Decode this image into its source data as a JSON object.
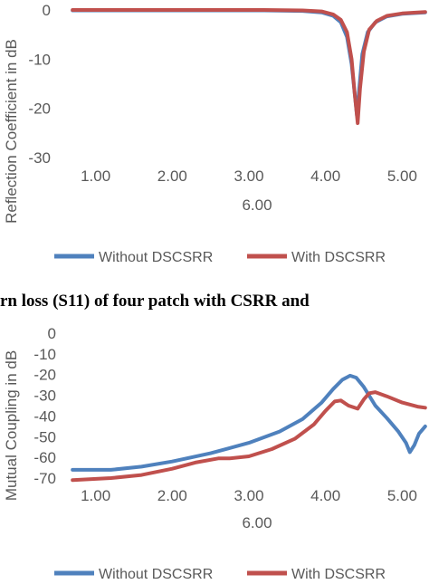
{
  "colors": {
    "without": "#4f81bd",
    "with": "#c0504d",
    "axis": "#d9d9d9",
    "text": "#595959"
  },
  "caption": "rn loss (S11) of four patch with CSRR and",
  "chart_data": [
    {
      "type": "line",
      "ylabel": "Reflection Coefficient in dB",
      "xlabel": "",
      "x_tick_labels": [
        "1.00",
        "2.00",
        "3.00",
        "4.00",
        "5.00"
      ],
      "x_tick_overflow": "6.00",
      "xlim": [
        0.65,
        5.35
      ],
      "ylim": [
        -30,
        0
      ],
      "yticks": [
        "0",
        "-10",
        "-20",
        "-30"
      ],
      "ytick_values": [
        0,
        -10,
        -20,
        -30
      ],
      "grid": false,
      "legend_position": "bottom",
      "series": [
        {
          "name": "Without DSCSRR",
          "color": "#4f81bd",
          "x": [
            0.7,
            1.5,
            2.5,
            3.2,
            3.7,
            3.95,
            4.1,
            4.2,
            4.28,
            4.34,
            4.38,
            4.41,
            4.44,
            4.48,
            4.55,
            4.65,
            4.8,
            5.0,
            5.3
          ],
          "y": [
            -0.1,
            -0.1,
            -0.1,
            -0.1,
            -0.2,
            -0.5,
            -1.2,
            -2.5,
            -5.5,
            -11,
            -17,
            -21.5,
            -16,
            -9,
            -4.5,
            -2.5,
            -1.3,
            -0.8,
            -0.5
          ]
        },
        {
          "name": "With DSCSRR",
          "color": "#c0504d",
          "x": [
            0.7,
            1.5,
            2.5,
            3.2,
            3.7,
            3.95,
            4.1,
            4.2,
            4.28,
            4.34,
            4.38,
            4.42,
            4.45,
            4.5,
            4.57,
            4.67,
            4.8,
            5.0,
            5.3
          ],
          "y": [
            0,
            0,
            0,
            0,
            -0.1,
            -0.3,
            -0.9,
            -2.0,
            -4.5,
            -10,
            -17,
            -23,
            -16,
            -8.5,
            -4,
            -2.2,
            -1.2,
            -0.7,
            -0.4
          ]
        }
      ]
    },
    {
      "type": "line",
      "ylabel": "Mutual Coupling in dB",
      "xlabel": "",
      "x_tick_labels": [
        "1.00",
        "2.00",
        "3.00",
        "4.00",
        "5.00"
      ],
      "x_tick_overflow": "6.00",
      "xlim": [
        0.65,
        5.35
      ],
      "ylim": [
        -70,
        0
      ],
      "yticks": [
        "0",
        "-10",
        "-20",
        "-30",
        "-40",
        "-50",
        "-60",
        "-70"
      ],
      "ytick_values": [
        0,
        -10,
        -20,
        -30,
        -40,
        -50,
        -60,
        -70
      ],
      "grid": false,
      "legend_position": "bottom",
      "series": [
        {
          "name": "Without DSCSRR",
          "color": "#4f81bd",
          "x": [
            0.7,
            1.2,
            1.6,
            2.0,
            2.5,
            3.0,
            3.4,
            3.7,
            3.95,
            4.1,
            4.22,
            4.32,
            4.4,
            4.5,
            4.65,
            4.8,
            4.95,
            5.05,
            5.1,
            5.16,
            5.22,
            5.3
          ],
          "y": [
            -66,
            -66,
            -64.5,
            -62,
            -58,
            -53,
            -47.5,
            -41.5,
            -33.5,
            -27,
            -22.5,
            -20.5,
            -21.5,
            -26,
            -35,
            -41,
            -47.5,
            -53,
            -57.5,
            -54,
            -48.5,
            -45
          ]
        },
        {
          "name": "With DSCSRR",
          "color": "#c0504d",
          "x": [
            0.7,
            1.2,
            1.6,
            2.0,
            2.3,
            2.6,
            2.75,
            3.0,
            3.3,
            3.6,
            3.85,
            4.0,
            4.12,
            4.2,
            4.3,
            4.42,
            4.5,
            4.57,
            4.65,
            4.8,
            5.0,
            5.2,
            5.3
          ],
          "y": [
            -71,
            -70,
            -68.5,
            -65.5,
            -62.5,
            -60.5,
            -60.5,
            -59.5,
            -56,
            -51,
            -44,
            -37.5,
            -33,
            -32.5,
            -35,
            -36.5,
            -32,
            -29,
            -28.5,
            -30.5,
            -33.5,
            -35.5,
            -36
          ]
        }
      ]
    }
  ]
}
